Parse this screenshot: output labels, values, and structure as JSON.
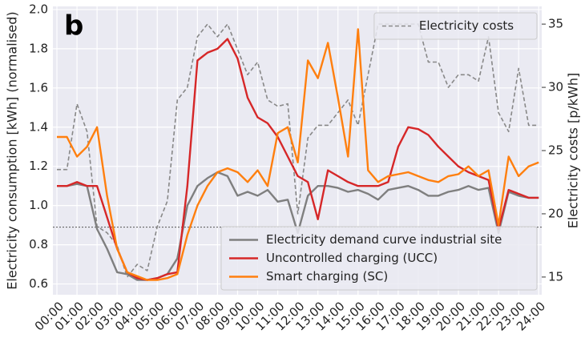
{
  "chart_data": {
    "type": "line",
    "panel_label": "b",
    "x": [
      0,
      0.5,
      1,
      1.5,
      2,
      2.5,
      3,
      3.5,
      4,
      4.5,
      5,
      5.5,
      6,
      6.5,
      7,
      7.5,
      8,
      8.5,
      9,
      9.5,
      10,
      10.5,
      11,
      11.5,
      12,
      12.5,
      13,
      13.5,
      14,
      14.5,
      15,
      15.5,
      16,
      16.5,
      17,
      17.5,
      18,
      18.5,
      19,
      19.5,
      20,
      20.5,
      21,
      21.5,
      22,
      22.5,
      23,
      23.5,
      24
    ],
    "xlim": [
      -0.2,
      24.15
    ],
    "xticks": [
      {
        "value": 0,
        "label": "00:00"
      },
      {
        "value": 1,
        "label": "01:00"
      },
      {
        "value": 2,
        "label": "02:00"
      },
      {
        "value": 3,
        "label": "03:00"
      },
      {
        "value": 4,
        "label": "04:00"
      },
      {
        "value": 5,
        "label": "05:00"
      },
      {
        "value": 6,
        "label": "06:00"
      },
      {
        "value": 7,
        "label": "07:00"
      },
      {
        "value": 8,
        "label": "08:00"
      },
      {
        "value": 9,
        "label": "09:00"
      },
      {
        "value": 10,
        "label": "10:00"
      },
      {
        "value": 11,
        "label": "11:00"
      },
      {
        "value": 12,
        "label": "12:00"
      },
      {
        "value": 13,
        "label": "13:00"
      },
      {
        "value": 14,
        "label": "14:00"
      },
      {
        "value": 15,
        "label": "15:00"
      },
      {
        "value": 16,
        "label": "16:00"
      },
      {
        "value": 17,
        "label": "17:00"
      },
      {
        "value": 18,
        "label": "18:00"
      },
      {
        "value": 19,
        "label": "19:00"
      },
      {
        "value": 20,
        "label": "20:00"
      },
      {
        "value": 21,
        "label": "21:00"
      },
      {
        "value": 22,
        "label": "22:00"
      },
      {
        "value": 23,
        "label": "23:00"
      },
      {
        "value": 24,
        "label": "24:00"
      }
    ],
    "ylabel": "Electricity consumption [kWh] (normalised)",
    "ylim": [
      0.545,
      2.016
    ],
    "yticks": [
      0.6,
      0.8,
      {
        "value": 1,
        "label": "1.0"
      },
      1.2,
      1.4,
      1.6,
      1.8,
      {
        "value": 2,
        "label": "2.0"
      }
    ],
    "y2label": "Electricity costs [p/kWh]",
    "y2lim": [
      13.6,
      36.4
    ],
    "y2ticks": [
      15,
      20,
      25,
      30,
      35
    ],
    "hline": 0.89,
    "grid": true,
    "legend_loc": "lower right",
    "legend2_loc": "upper right",
    "series": [
      {
        "name": "Electricity demand curve industrial site",
        "color": "#7f7f7f",
        "values": [
          1.1,
          1.1,
          1.11,
          1.1,
          0.88,
          0.78,
          0.66,
          0.65,
          0.62,
          0.62,
          0.63,
          0.65,
          0.73,
          1.0,
          1.1,
          1.14,
          1.17,
          1.15,
          1.05,
          1.07,
          1.05,
          1.08,
          1.02,
          1.03,
          0.86,
          1.05,
          1.1,
          1.1,
          1.09,
          1.07,
          1.08,
          1.06,
          1.03,
          1.08,
          1.09,
          1.1,
          1.08,
          1.05,
          1.05,
          1.07,
          1.08,
          1.1,
          1.08,
          1.09,
          0.86,
          1.07,
          1.05,
          1.04,
          1.04
        ]
      },
      {
        "name": "Uncontrolled charging (UCC)",
        "color": "#d62728",
        "values": [
          1.1,
          1.1,
          1.12,
          1.1,
          1.1,
          0.94,
          0.78,
          0.66,
          0.63,
          0.62,
          0.63,
          0.65,
          0.66,
          1.1,
          1.74,
          1.78,
          1.8,
          1.85,
          1.75,
          1.55,
          1.45,
          1.42,
          1.35,
          1.25,
          1.15,
          1.12,
          0.93,
          1.18,
          1.15,
          1.12,
          1.1,
          1.1,
          1.1,
          1.12,
          1.3,
          1.4,
          1.39,
          1.36,
          1.3,
          1.25,
          1.2,
          1.17,
          1.15,
          1.13,
          0.88,
          1.08,
          1.06,
          1.04,
          1.04
        ]
      },
      {
        "name": "Smart charging (SC)",
        "color": "#ff7f0e",
        "values": [
          1.35,
          1.35,
          1.25,
          1.3,
          1.4,
          1.05,
          0.78,
          0.66,
          0.64,
          0.62,
          0.62,
          0.63,
          0.65,
          0.85,
          1.0,
          1.1,
          1.17,
          1.19,
          1.17,
          1.12,
          1.18,
          1.1,
          1.37,
          1.4,
          1.22,
          1.74,
          1.65,
          1.83,
          1.55,
          1.25,
          1.9,
          1.18,
          1.12,
          1.15,
          1.16,
          1.17,
          1.15,
          1.13,
          1.12,
          1.15,
          1.16,
          1.2,
          1.15,
          1.18,
          0.9,
          1.25,
          1.15,
          1.2,
          1.22
        ]
      },
      {
        "name": "Electricity costs",
        "color": "#888888",
        "axis": "y2",
        "dashed": true,
        "values": [
          23.5,
          23.5,
          28.7,
          26.5,
          19,
          18.5,
          17.5,
          15,
          16,
          15.5,
          19,
          21,
          29,
          30,
          34,
          35,
          34,
          35,
          33,
          31,
          32,
          29,
          28.5,
          28.7,
          20,
          26,
          27,
          27,
          28,
          29,
          27,
          31,
          35,
          35,
          35,
          35,
          35,
          32,
          32,
          30,
          31,
          31,
          30.5,
          34,
          28,
          26.5,
          31.5,
          27,
          27
        ]
      }
    ]
  }
}
